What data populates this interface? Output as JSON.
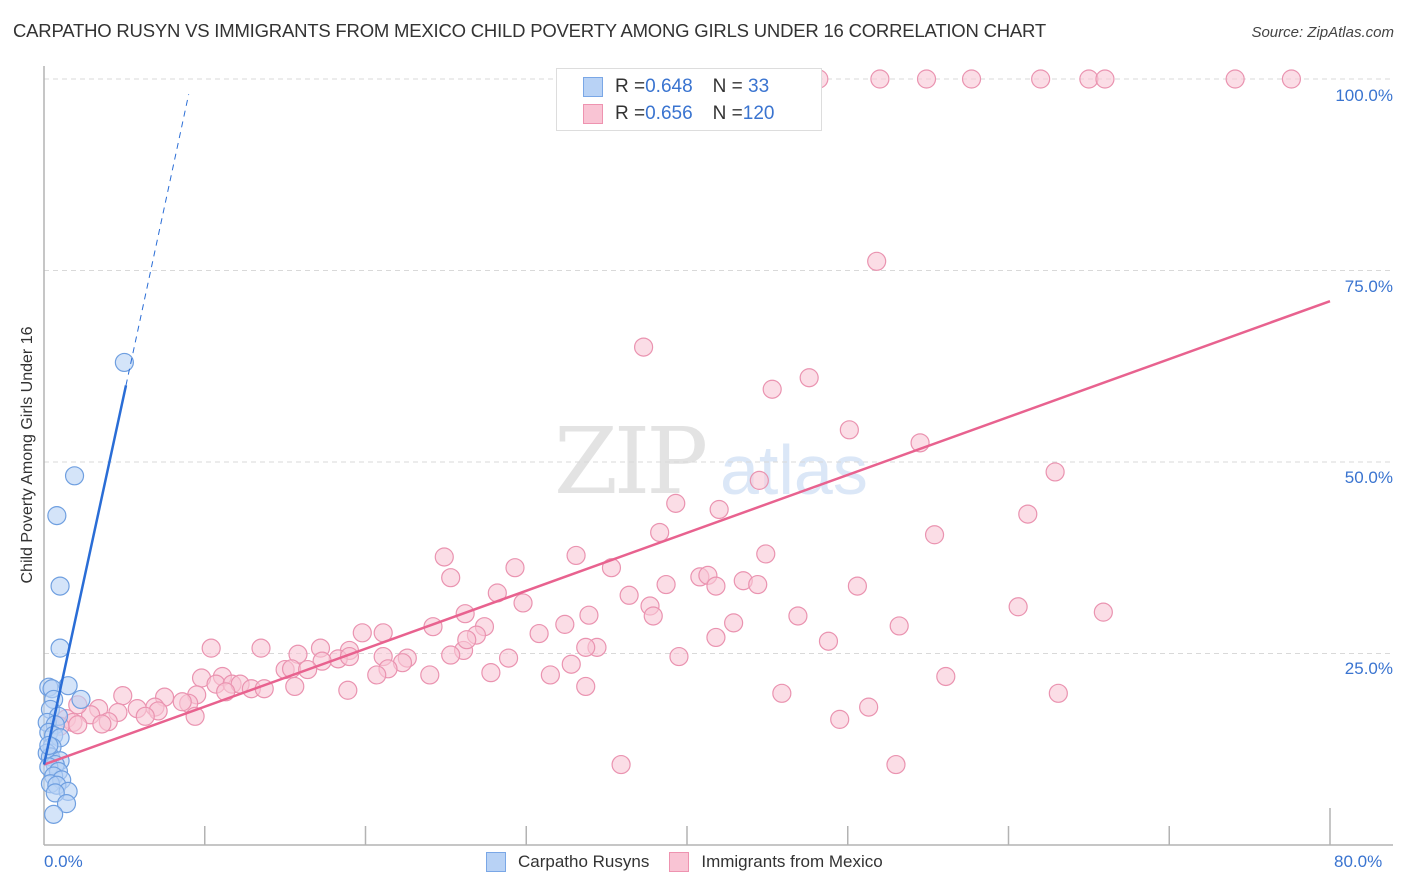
{
  "header": {
    "title": "CARPATHO RUSYN VS IMMIGRANTS FROM MEXICO CHILD POVERTY AMONG GIRLS UNDER 16 CORRELATION CHART",
    "source": "Source: ZipAtlas.com"
  },
  "watermark": {
    "zip": "ZIP",
    "atlas": "atlas"
  },
  "legend": {
    "rows": [
      {
        "r_label": "R = ",
        "r_value": "0.648",
        "n_label": "N = ",
        "n_value": " 33"
      },
      {
        "r_label": "R = ",
        "r_value": "0.656",
        "n_label": "N = ",
        "n_value": "120"
      }
    ]
  },
  "bottom_legend": {
    "series1": "Carpatho Rusyns",
    "series2": "Immigrants from Mexico"
  },
  "axes": {
    "ylabel": "Child Poverty Among Girls Under 16",
    "y_ticks": [
      "100.0%",
      "75.0%",
      "50.0%",
      "25.0%"
    ],
    "x_min_label": "0.0%",
    "x_max_label": "80.0%"
  },
  "colors": {
    "blue_fill": "#b8d2f5",
    "blue_stroke": "#6f9fe0",
    "blue_line": "#2a6dd6",
    "pink_fill": "#f9c7d6",
    "pink_stroke": "#ea93b0",
    "pink_line": "#e8628f",
    "grid": "#d9d9d9",
    "axis": "#b3b3b3",
    "tick_label": "#3a74d0"
  },
  "chart_data": {
    "type": "scatter",
    "title": "CARPATHO RUSYN VS IMMIGRANTS FROM MEXICO CHILD POVERTY AMONG GIRLS UNDER 16 CORRELATION CHART",
    "xlabel": "",
    "ylabel": "Child Poverty Among Girls Under 16",
    "xlim": [
      0,
      80
    ],
    "ylim": [
      0,
      100
    ],
    "x_ticks": [
      0,
      10,
      20,
      30,
      40,
      50,
      60,
      70,
      80
    ],
    "y_ticks": [
      25,
      50,
      75,
      100
    ],
    "grid": true,
    "legend_position": "top-center & bottom",
    "series": [
      {
        "name": "Carpatho Rusyns",
        "R": 0.648,
        "N": 33,
        "trend": {
          "x0": 0,
          "y0": 10.5,
          "x1": 5.1,
          "y1": 60.0,
          "dashed_to": {
            "x": 9.0,
            "y": 98
          }
        },
        "points": [
          [
            5.0,
            63.0
          ],
          [
            1.9,
            48.2
          ],
          [
            0.8,
            43.0
          ],
          [
            1.0,
            33.8
          ],
          [
            1.0,
            25.7
          ],
          [
            0.3,
            20.6
          ],
          [
            0.5,
            20.4
          ],
          [
            1.5,
            20.8
          ],
          [
            2.3,
            19.0
          ],
          [
            0.6,
            19.0
          ],
          [
            0.4,
            17.7
          ],
          [
            0.9,
            16.8
          ],
          [
            0.2,
            16.0
          ],
          [
            0.7,
            15.7
          ],
          [
            0.3,
            14.7
          ],
          [
            0.6,
            14.3
          ],
          [
            1.0,
            14.0
          ],
          [
            0.5,
            12.8
          ],
          [
            0.2,
            12.0
          ],
          [
            0.4,
            11.5
          ],
          [
            1.0,
            11.0
          ],
          [
            0.7,
            10.5
          ],
          [
            0.3,
            10.2
          ],
          [
            0.9,
            9.6
          ],
          [
            0.6,
            9.0
          ],
          [
            1.1,
            8.5
          ],
          [
            0.4,
            8.0
          ],
          [
            0.8,
            7.8
          ],
          [
            1.5,
            7.0
          ],
          [
            0.7,
            6.8
          ],
          [
            1.4,
            5.4
          ],
          [
            0.6,
            4.0
          ],
          [
            0.3,
            13.0
          ]
        ]
      },
      {
        "name": "Immigrants from Mexico",
        "R": 0.656,
        "N": 120,
        "trend": {
          "x0": 0,
          "y0": 10.5,
          "x1": 80,
          "y1": 71.0
        },
        "points": [
          [
            48.2,
            100.0
          ],
          [
            52.0,
            100.0
          ],
          [
            54.9,
            100.0
          ],
          [
            57.7,
            100.0
          ],
          [
            62.0,
            100.0
          ],
          [
            65.0,
            100.0
          ],
          [
            66.0,
            100.0
          ],
          [
            74.1,
            100.0
          ],
          [
            77.6,
            100.0
          ],
          [
            51.8,
            76.2
          ],
          [
            37.3,
            65.0
          ],
          [
            47.6,
            61.0
          ],
          [
            45.3,
            59.5
          ],
          [
            50.1,
            54.2
          ],
          [
            54.5,
            52.5
          ],
          [
            62.9,
            48.7
          ],
          [
            44.5,
            47.6
          ],
          [
            42.0,
            43.8
          ],
          [
            39.3,
            44.6
          ],
          [
            38.3,
            40.8
          ],
          [
            55.4,
            40.5
          ],
          [
            61.2,
            43.2
          ],
          [
            44.9,
            38.0
          ],
          [
            33.1,
            37.8
          ],
          [
            24.9,
            37.6
          ],
          [
            29.3,
            36.2
          ],
          [
            35.3,
            36.2
          ],
          [
            40.8,
            35.0
          ],
          [
            25.3,
            34.9
          ],
          [
            41.3,
            35.2
          ],
          [
            43.5,
            34.5
          ],
          [
            44.4,
            34.0
          ],
          [
            41.8,
            33.8
          ],
          [
            38.7,
            34.0
          ],
          [
            50.6,
            33.8
          ],
          [
            36.4,
            32.6
          ],
          [
            28.2,
            32.9
          ],
          [
            29.8,
            31.6
          ],
          [
            37.7,
            31.2
          ],
          [
            26.2,
            30.2
          ],
          [
            33.9,
            30.0
          ],
          [
            46.9,
            29.9
          ],
          [
            37.9,
            29.9
          ],
          [
            60.6,
            31.1
          ],
          [
            65.9,
            30.4
          ],
          [
            24.2,
            28.5
          ],
          [
            32.4,
            28.8
          ],
          [
            27.4,
            28.5
          ],
          [
            42.9,
            29.0
          ],
          [
            53.2,
            28.6
          ],
          [
            21.1,
            27.7
          ],
          [
            19.8,
            27.7
          ],
          [
            26.9,
            27.4
          ],
          [
            30.8,
            27.6
          ],
          [
            26.1,
            25.4
          ],
          [
            17.2,
            25.7
          ],
          [
            13.5,
            25.7
          ],
          [
            34.4,
            25.8
          ],
          [
            33.7,
            25.8
          ],
          [
            19.0,
            25.4
          ],
          [
            41.8,
            27.1
          ],
          [
            48.8,
            26.6
          ],
          [
            18.3,
            24.3
          ],
          [
            21.1,
            24.6
          ],
          [
            15.8,
            24.9
          ],
          [
            19.0,
            24.6
          ],
          [
            17.3,
            24.0
          ],
          [
            25.3,
            24.8
          ],
          [
            28.9,
            24.4
          ],
          [
            39.5,
            24.6
          ],
          [
            10.4,
            25.7
          ],
          [
            22.6,
            24.4
          ],
          [
            22.3,
            23.8
          ],
          [
            21.4,
            23.0
          ],
          [
            15.0,
            22.9
          ],
          [
            15.4,
            23.0
          ],
          [
            16.4,
            22.9
          ],
          [
            20.7,
            22.2
          ],
          [
            24.0,
            22.2
          ],
          [
            27.8,
            22.5
          ],
          [
            31.5,
            22.2
          ],
          [
            32.8,
            23.6
          ],
          [
            26.3,
            26.8
          ],
          [
            9.8,
            21.8
          ],
          [
            11.1,
            22.0
          ],
          [
            10.7,
            21.0
          ],
          [
            11.7,
            21.0
          ],
          [
            12.2,
            21.0
          ],
          [
            12.9,
            20.4
          ],
          [
            13.7,
            20.4
          ],
          [
            15.6,
            20.7
          ],
          [
            18.9,
            20.2
          ],
          [
            9.5,
            19.6
          ],
          [
            11.3,
            20.0
          ],
          [
            33.7,
            20.7
          ],
          [
            56.1,
            22.0
          ],
          [
            7.5,
            19.3
          ],
          [
            9.0,
            18.5
          ],
          [
            4.9,
            19.5
          ],
          [
            8.6,
            18.7
          ],
          [
            6.9,
            18.0
          ],
          [
            5.8,
            17.8
          ],
          [
            7.1,
            17.5
          ],
          [
            3.4,
            17.8
          ],
          [
            9.4,
            16.8
          ],
          [
            6.3,
            16.8
          ],
          [
            4.6,
            17.3
          ],
          [
            4.0,
            16.1
          ],
          [
            2.9,
            17.0
          ],
          [
            2.1,
            18.3
          ],
          [
            1.4,
            16.5
          ],
          [
            1.8,
            16.0
          ],
          [
            1.0,
            15.5
          ],
          [
            2.1,
            15.7
          ],
          [
            3.6,
            15.8
          ],
          [
            45.9,
            19.8
          ],
          [
            63.1,
            19.8
          ],
          [
            49.5,
            16.4
          ],
          [
            51.3,
            18.0
          ],
          [
            35.9,
            10.5
          ],
          [
            53.0,
            10.5
          ]
        ]
      }
    ]
  }
}
